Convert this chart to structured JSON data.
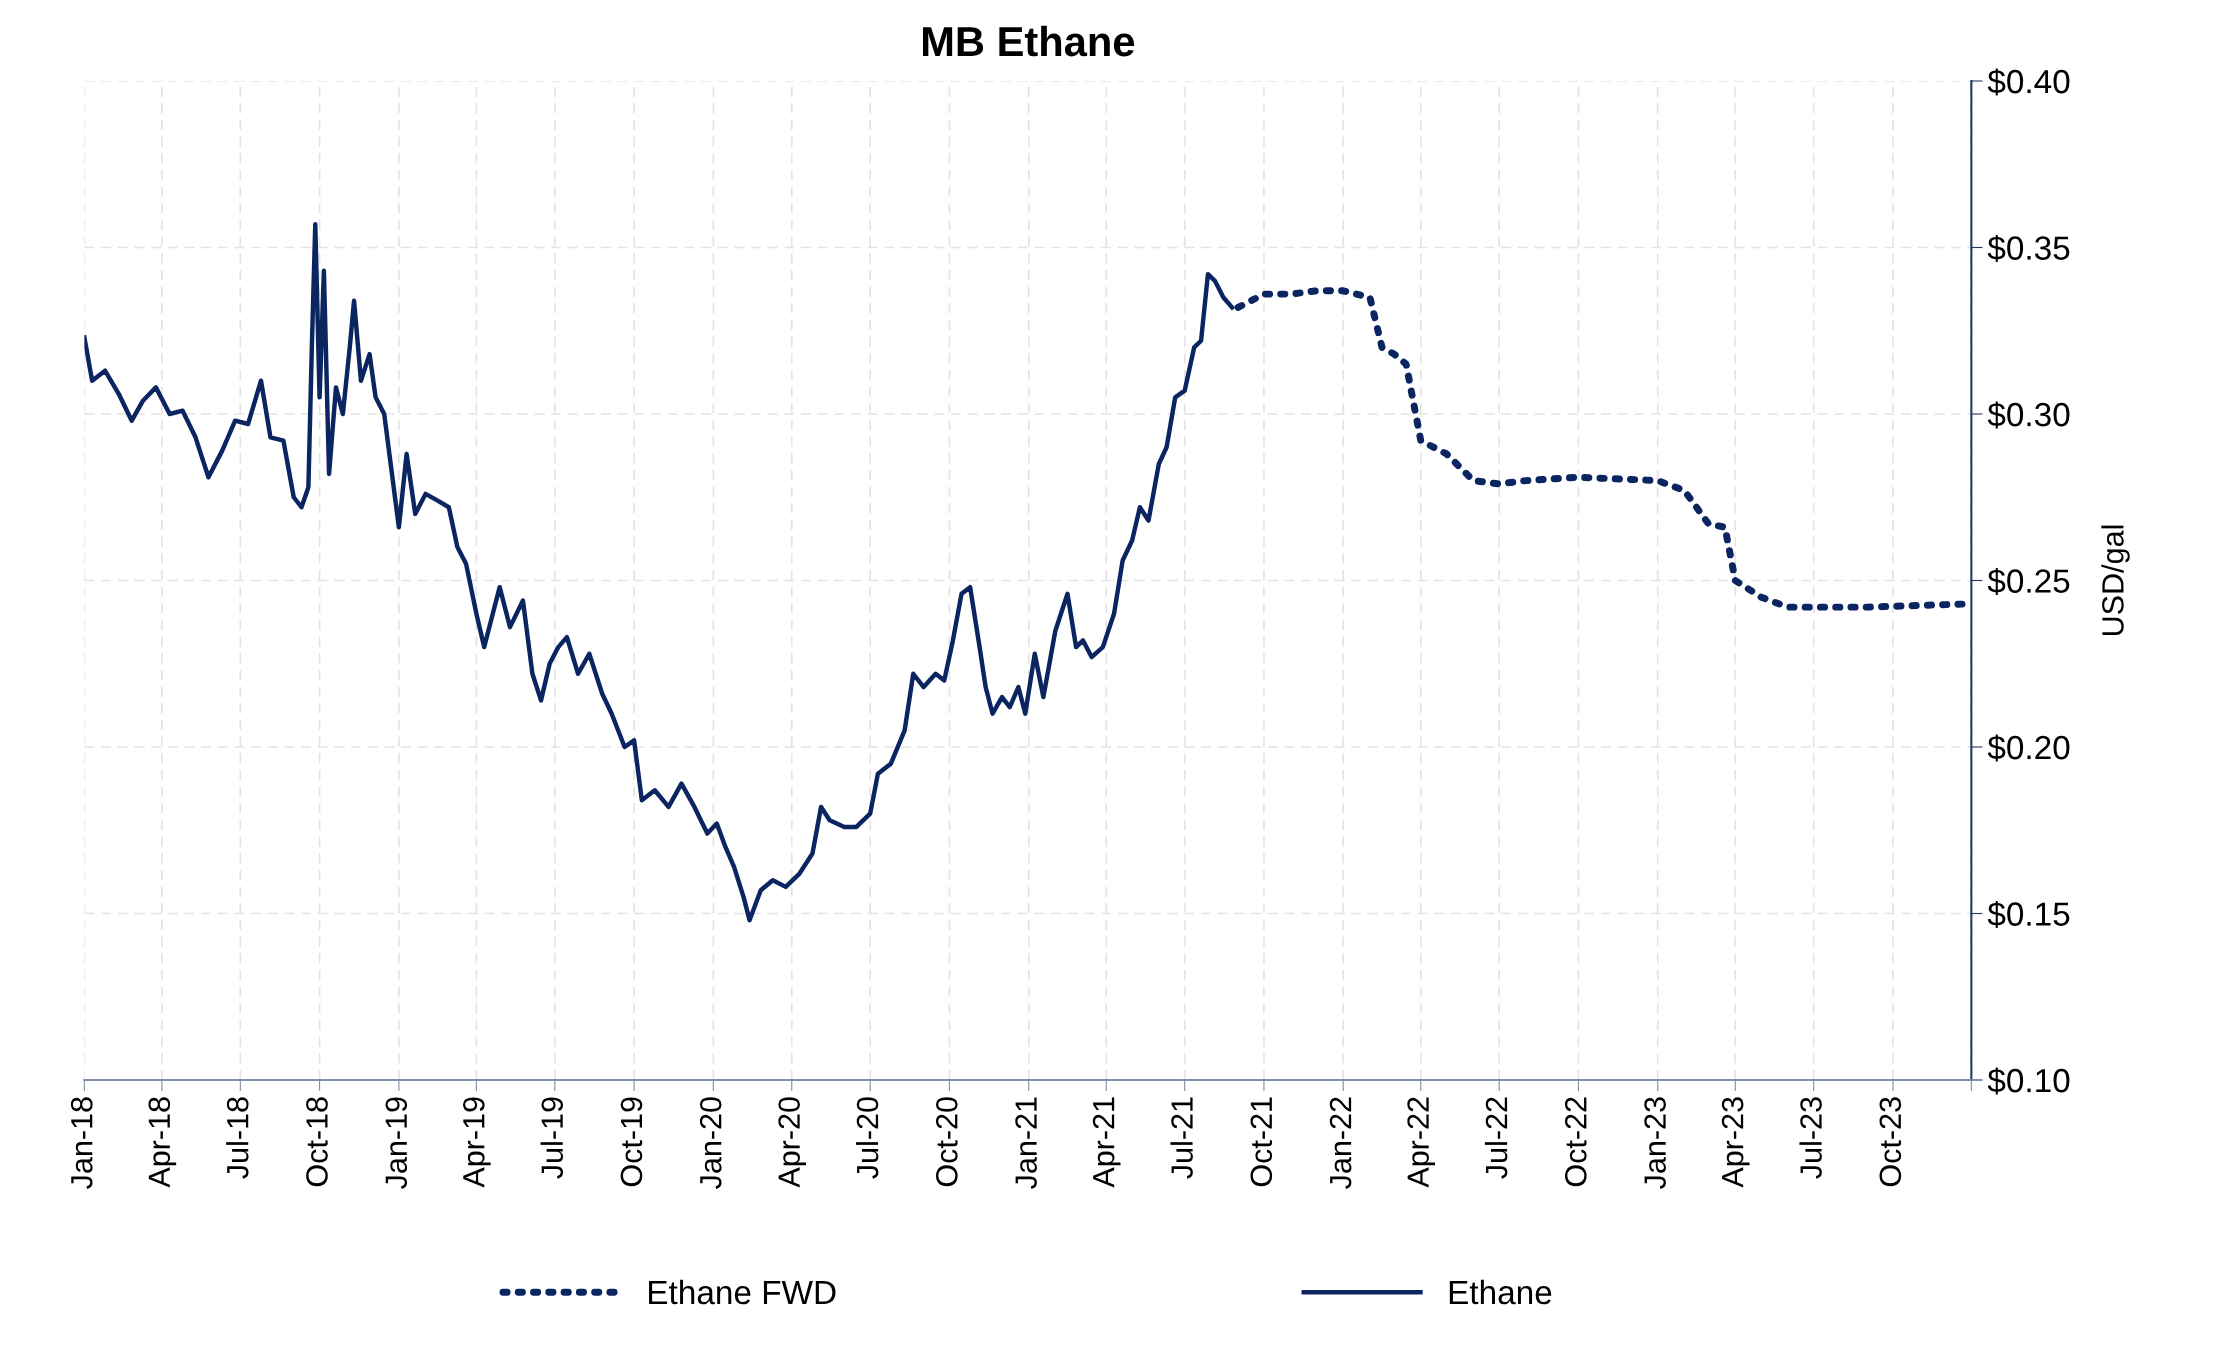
{
  "chart_data": {
    "type": "line",
    "title": "MB Ethane",
    "ylabel": "USD/gal",
    "grid": true,
    "legend": "bottom",
    "marker": "none",
    "xlim": [
      "2018-01-01",
      "2023-12-31"
    ],
    "xticks": [
      {
        "value": "2018-01-01",
        "label": "Jan-18"
      },
      {
        "value": "2018-04-01",
        "label": "Apr-18"
      },
      {
        "value": "2018-07-01",
        "label": "Jul-18"
      },
      {
        "value": "2018-10-01",
        "label": "Oct-18"
      },
      {
        "value": "2019-01-01",
        "label": "Jan-19"
      },
      {
        "value": "2019-04-01",
        "label": "Apr-19"
      },
      {
        "value": "2019-07-01",
        "label": "Jul-19"
      },
      {
        "value": "2019-10-01",
        "label": "Oct-19"
      },
      {
        "value": "2020-01-01",
        "label": "Jan-20"
      },
      {
        "value": "2020-04-01",
        "label": "Apr-20"
      },
      {
        "value": "2020-07-01",
        "label": "Jul-20"
      },
      {
        "value": "2020-10-01",
        "label": "Oct-20"
      },
      {
        "value": "2021-01-01",
        "label": "Jan-21"
      },
      {
        "value": "2021-04-01",
        "label": "Apr-21"
      },
      {
        "value": "2021-07-01",
        "label": "Jul-21"
      },
      {
        "value": "2021-10-01",
        "label": "Oct-21"
      },
      {
        "value": "2022-01-01",
        "label": "Jan-22"
      },
      {
        "value": "2022-04-01",
        "label": "Apr-22"
      },
      {
        "value": "2022-07-01",
        "label": "Jul-22"
      },
      {
        "value": "2022-10-01",
        "label": "Oct-22"
      },
      {
        "value": "2023-01-01",
        "label": "Jan-23"
      },
      {
        "value": "2023-04-01",
        "label": "Apr-23"
      },
      {
        "value": "2023-07-01",
        "label": "Jul-23"
      },
      {
        "value": "2023-10-01",
        "label": "Oct-23"
      },
      {
        "value": "2023-12-31",
        "label": null
      }
    ],
    "ylim": [
      0.1,
      0.4
    ],
    "yticks": [
      {
        "value": 0.1,
        "label": "$0.10"
      },
      {
        "value": 0.15,
        "label": "$0.15"
      },
      {
        "value": 0.2,
        "label": "$0.20"
      },
      {
        "value": 0.25,
        "label": "$0.25"
      },
      {
        "value": 0.3,
        "label": "$0.30"
      },
      {
        "value": 0.35,
        "label": "$0.35"
      },
      {
        "value": 0.4,
        "label": "$0.40"
      }
    ],
    "series": [
      {
        "name": "Ethane FWD",
        "color": "#0b2560",
        "line_style": "dotted",
        "x": [
          "2021-09-01",
          "2021-10-01",
          "2021-11-01",
          "2021-12-01",
          "2022-01-01",
          "2022-02-01",
          "2022-02-15",
          "2022-03-01",
          "2022-03-15",
          "2022-04-01",
          "2022-05-01",
          "2022-06-01",
          "2022-07-01",
          "2022-08-01",
          "2022-10-01",
          "2023-01-01",
          "2023-02-01",
          "2023-03-01",
          "2023-03-20",
          "2023-04-01",
          "2023-05-01",
          "2023-06-01",
          "2023-09-01",
          "2023-12-31"
        ],
        "values": [
          0.332,
          0.336,
          0.336,
          0.337,
          0.337,
          0.335,
          0.32,
          0.318,
          0.315,
          0.292,
          0.288,
          0.28,
          0.279,
          0.28,
          0.281,
          0.28,
          0.277,
          0.267,
          0.266,
          0.25,
          0.245,
          0.242,
          0.242,
          0.243
        ]
      },
      {
        "name": "Ethane",
        "color": "#0b2560",
        "line_style": "solid",
        "x": [
          "2018-01-01",
          "2018-01-10",
          "2018-01-25",
          "2018-02-10",
          "2018-02-25",
          "2018-03-10",
          "2018-03-25",
          "2018-04-10",
          "2018-04-25",
          "2018-05-10",
          "2018-05-25",
          "2018-06-10",
          "2018-06-25",
          "2018-07-10",
          "2018-07-25",
          "2018-08-05",
          "2018-08-20",
          "2018-09-01",
          "2018-09-10",
          "2018-09-18",
          "2018-09-22",
          "2018-09-26",
          "2018-10-01",
          "2018-10-06",
          "2018-10-12",
          "2018-10-20",
          "2018-10-28",
          "2018-11-05",
          "2018-11-10",
          "2018-11-18",
          "2018-11-28",
          "2018-12-05",
          "2018-12-15",
          "2018-12-25",
          "2019-01-01",
          "2019-01-10",
          "2019-01-20",
          "2019-02-01",
          "2019-02-15",
          "2019-02-28",
          "2019-03-10",
          "2019-03-20",
          "2019-04-01",
          "2019-04-10",
          "2019-04-20",
          "2019-04-28",
          "2019-05-10",
          "2019-05-25",
          "2019-06-05",
          "2019-06-15",
          "2019-06-25",
          "2019-07-05",
          "2019-07-15",
          "2019-07-28",
          "2019-08-10",
          "2019-08-25",
          "2019-09-05",
          "2019-09-20",
          "2019-10-01",
          "2019-10-10",
          "2019-10-25",
          "2019-11-10",
          "2019-11-25",
          "2019-12-10",
          "2019-12-25",
          "2020-01-05",
          "2020-01-15",
          "2020-01-25",
          "2020-02-05",
          "2020-02-12",
          "2020-02-25",
          "2020-03-10",
          "2020-03-25",
          "2020-04-10",
          "2020-04-25",
          "2020-05-05",
          "2020-05-15",
          "2020-06-01",
          "2020-06-15",
          "2020-07-01",
          "2020-07-10",
          "2020-07-25",
          "2020-08-10",
          "2020-08-20",
          "2020-09-01",
          "2020-09-15",
          "2020-09-25",
          "2020-10-05",
          "2020-10-15",
          "2020-10-25",
          "2020-11-05",
          "2020-11-12",
          "2020-11-20",
          "2020-12-01",
          "2020-12-10",
          "2020-12-20",
          "2020-12-28",
          "2021-01-08",
          "2021-01-18",
          "2021-02-01",
          "2021-02-15",
          "2021-02-25",
          "2021-03-05",
          "2021-03-15",
          "2021-03-28",
          "2021-04-10",
          "2021-04-20",
          "2021-05-01",
          "2021-05-10",
          "2021-05-20",
          "2021-06-01",
          "2021-06-10",
          "2021-06-20",
          "2021-07-01",
          "2021-07-12",
          "2021-07-20",
          "2021-07-28",
          "2021-08-05",
          "2021-08-15",
          "2021-08-25"
        ],
        "values": [
          0.323,
          0.31,
          0.313,
          0.306,
          0.298,
          0.304,
          0.308,
          0.3,
          0.301,
          0.293,
          0.281,
          0.289,
          0.298,
          0.297,
          0.31,
          0.293,
          0.292,
          0.275,
          0.272,
          0.278,
          0.32,
          0.357,
          0.305,
          0.343,
          0.282,
          0.308,
          0.3,
          0.32,
          0.334,
          0.31,
          0.318,
          0.305,
          0.3,
          0.28,
          0.266,
          0.288,
          0.27,
          0.276,
          0.274,
          0.272,
          0.26,
          0.255,
          0.24,
          0.23,
          0.24,
          0.248,
          0.236,
          0.244,
          0.222,
          0.214,
          0.225,
          0.23,
          0.233,
          0.222,
          0.228,
          0.216,
          0.21,
          0.2,
          0.202,
          0.184,
          0.187,
          0.182,
          0.189,
          0.182,
          0.174,
          0.177,
          0.17,
          0.164,
          0.155,
          0.148,
          0.157,
          0.16,
          0.158,
          0.162,
          0.168,
          0.182,
          0.178,
          0.176,
          0.176,
          0.18,
          0.192,
          0.195,
          0.205,
          0.222,
          0.218,
          0.222,
          0.22,
          0.232,
          0.246,
          0.248,
          0.23,
          0.218,
          0.21,
          0.215,
          0.212,
          0.218,
          0.21,
          0.228,
          0.215,
          0.235,
          0.246,
          0.23,
          0.232,
          0.227,
          0.23,
          0.24,
          0.256,
          0.262,
          0.272,
          0.268,
          0.285,
          0.29,
          0.305,
          0.307,
          0.32,
          0.322,
          0.342,
          0.34,
          0.335,
          0.332
        ]
      }
    ]
  }
}
